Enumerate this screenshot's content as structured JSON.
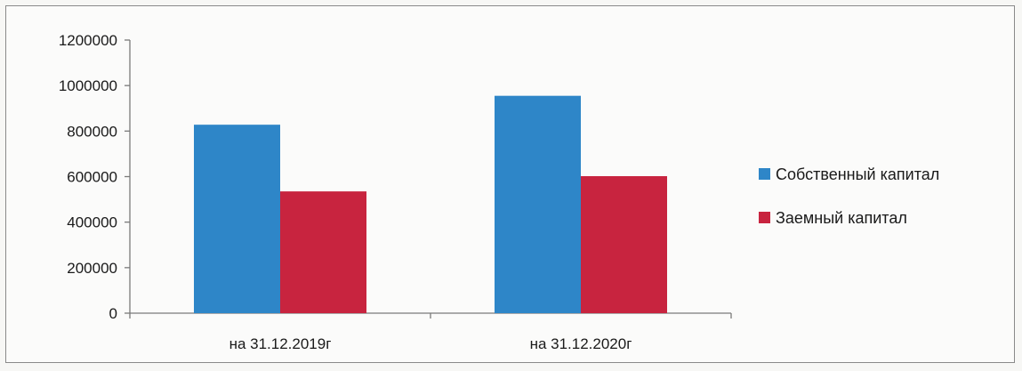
{
  "chart_data": {
    "type": "bar",
    "title": "",
    "xlabel": "",
    "ylabel": "",
    "categories": [
      "на 31.12.2019г",
      "на 31.12.2020г"
    ],
    "series": [
      {
        "name": "Собственный капитал",
        "values": [
          828000,
          955000
        ],
        "color": "#2e86c8"
      },
      {
        "name": "Заемный капитал",
        "values": [
          535000,
          602000
        ],
        "color": "#c8243f"
      }
    ],
    "ylim": [
      0,
      1200000
    ],
    "yticks": [
      0,
      200000,
      400000,
      600000,
      800000,
      1000000,
      1200000
    ],
    "grid": false,
    "legend_position": "right"
  }
}
